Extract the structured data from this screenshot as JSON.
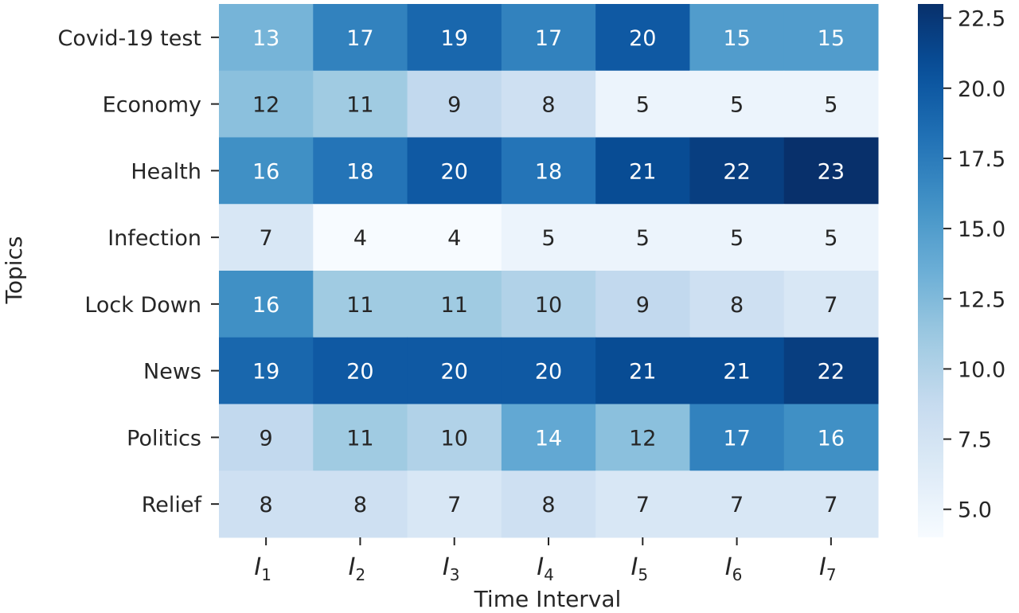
{
  "chart_data": {
    "type": "heatmap",
    "xlabel": "Time Interval",
    "ylabel": "Topics",
    "x_ticks": [
      {
        "base": "I",
        "sub": "1"
      },
      {
        "base": "I",
        "sub": "2"
      },
      {
        "base": "I",
        "sub": "3"
      },
      {
        "base": "I",
        "sub": "4"
      },
      {
        "base": "I",
        "sub": "5"
      },
      {
        "base": "I",
        "sub": "6"
      },
      {
        "base": "I",
        "sub": "7"
      }
    ],
    "y_categories": [
      "Covid-19 test",
      "Economy",
      "Health",
      "Infection",
      "Lock Down",
      "News",
      "Politics",
      "Relief"
    ],
    "values": [
      [
        13,
        17,
        19,
        17,
        20,
        15,
        15
      ],
      [
        12,
        11,
        9,
        8,
        5,
        5,
        5
      ],
      [
        16,
        18,
        20,
        18,
        21,
        22,
        23
      ],
      [
        7,
        4,
        4,
        5,
        5,
        5,
        5
      ],
      [
        16,
        11,
        11,
        10,
        9,
        8,
        7
      ],
      [
        19,
        20,
        20,
        20,
        21,
        21,
        22
      ],
      [
        9,
        11,
        10,
        14,
        12,
        17,
        16
      ],
      [
        8,
        8,
        7,
        8,
        7,
        7,
        7
      ]
    ],
    "colorbar": {
      "colormap": "Blues",
      "vmin": 4,
      "vmax": 23,
      "ticks": [
        5.0,
        7.5,
        10.0,
        12.5,
        15.0,
        17.5,
        20.0,
        22.5
      ],
      "tick_labels": [
        "5.0",
        "7.5",
        "10.0",
        "12.5",
        "15.0",
        "17.5",
        "20.0",
        "22.5"
      ]
    }
  }
}
